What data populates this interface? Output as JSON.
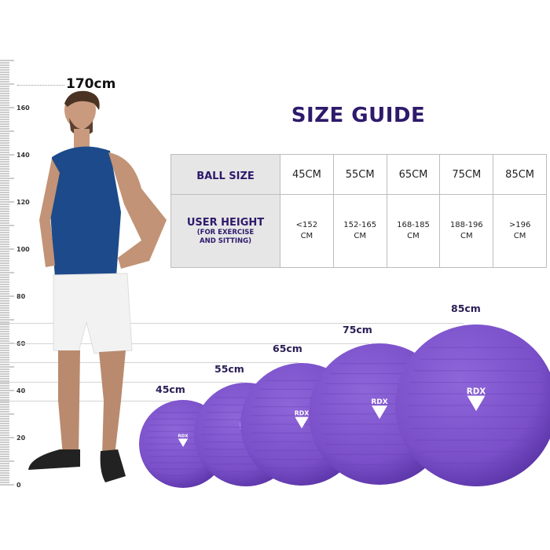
{
  "title": "SIZE GUIDE",
  "person_height_label": "170cm",
  "ruler": {
    "labels": [
      "0",
      "20",
      "40",
      "60",
      "80",
      "100",
      "120",
      "140",
      "160"
    ]
  },
  "table": {
    "row1_header": "BALL SIZE",
    "row2_header": "USER HEIGHT",
    "row2_subheader_line1": "(FOR EXERCISE",
    "row2_subheader_line2": "AND SITTING)",
    "sizes": [
      "45CM",
      "55CM",
      "65CM",
      "75CM",
      "85CM"
    ],
    "heights": [
      {
        "line1": "<152",
        "line2": "CM"
      },
      {
        "line1": "152-165",
        "line2": "CM"
      },
      {
        "line1": "168-185",
        "line2": "CM"
      },
      {
        "line1": "188-196",
        "line2": "CM"
      },
      {
        "line1": ">196",
        "line2": "CM"
      }
    ]
  },
  "balls": [
    {
      "label": "45cm",
      "logo": "RDX"
    },
    {
      "label": "55cm",
      "logo": "RDX"
    },
    {
      "label": "65cm",
      "logo": "RDX"
    },
    {
      "label": "75cm",
      "logo": "RDX"
    },
    {
      "label": "85cm",
      "logo": "RDX"
    }
  ],
  "colors": {
    "brand_purple": "#2e1a6b",
    "ball_purple": "#7a4fc9"
  }
}
